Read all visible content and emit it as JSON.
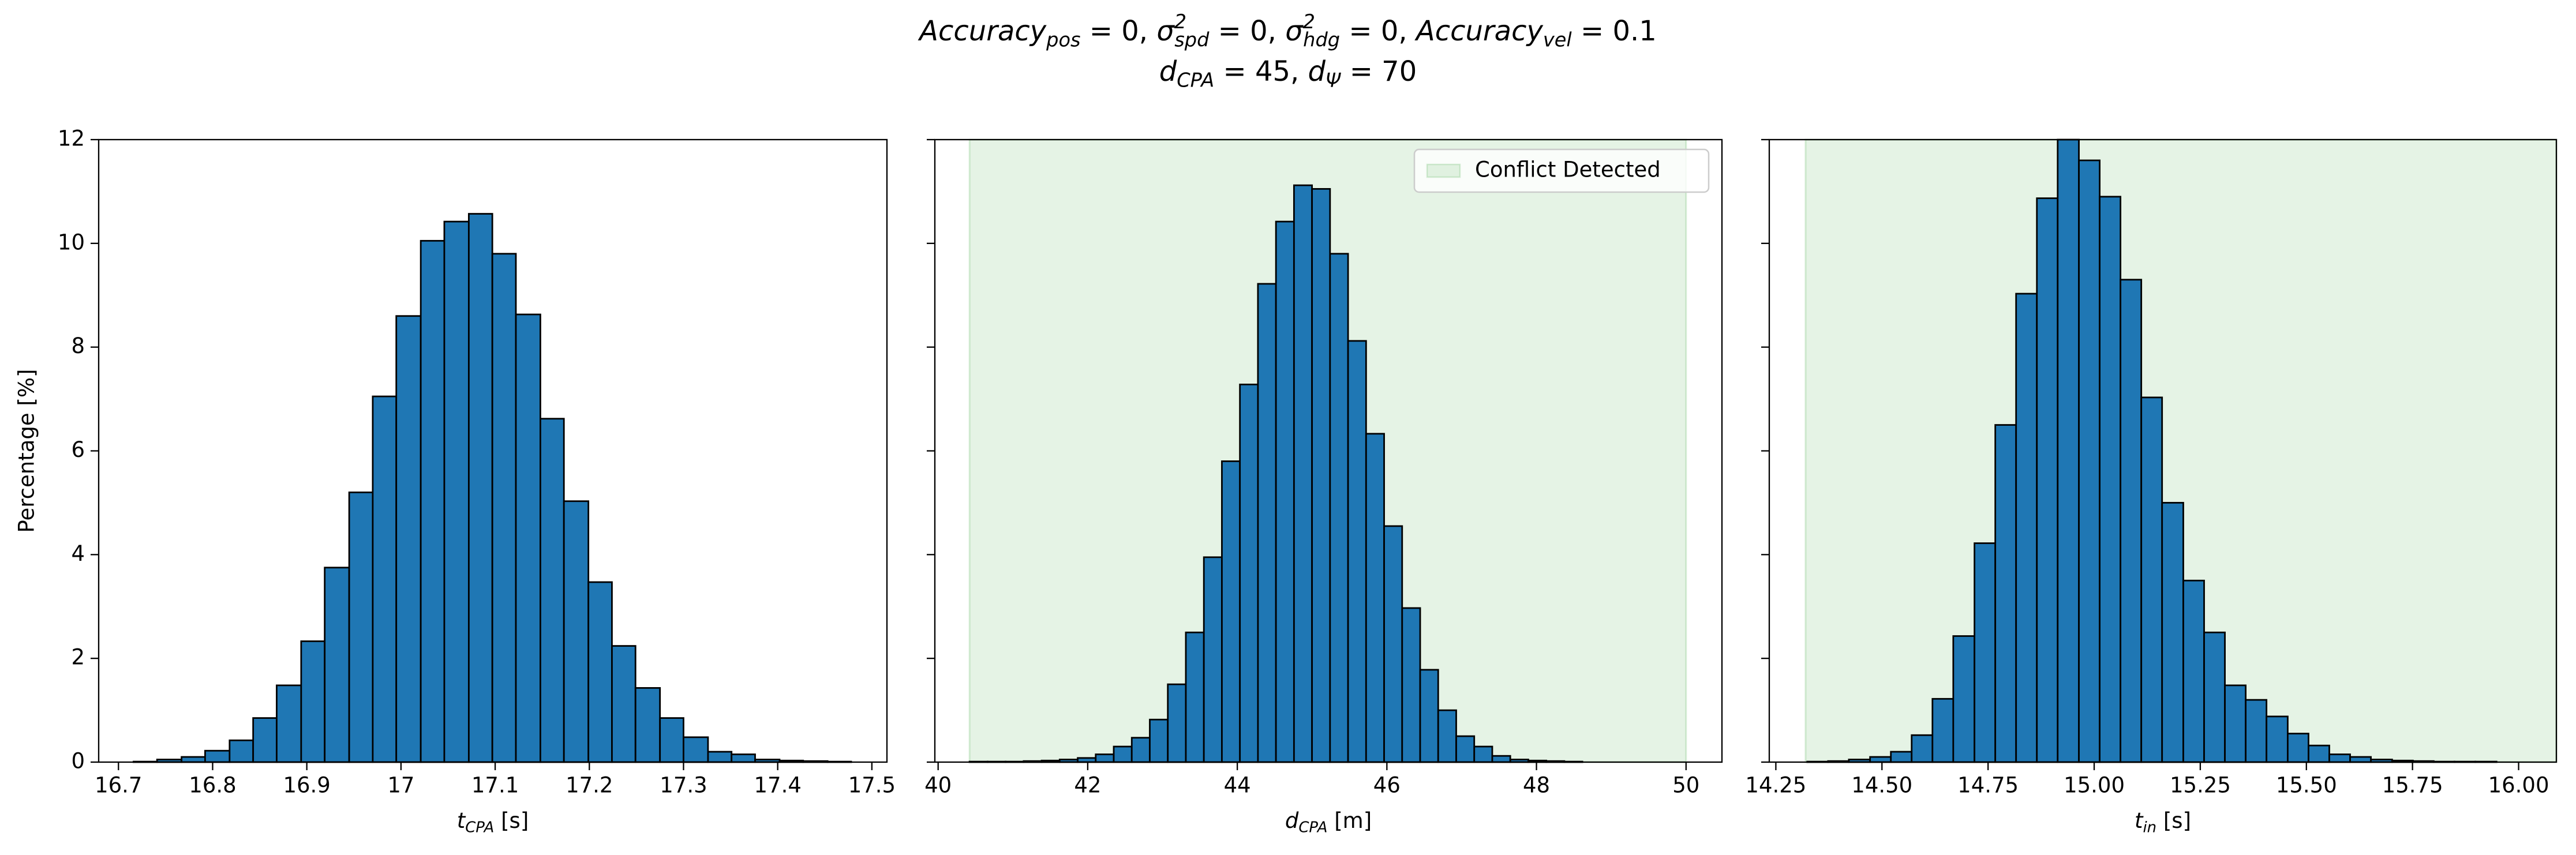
{
  "title": {
    "lines": [
      [
        {
          "t": "Accuracy",
          "sub": "pos"
        },
        " = 0, ",
        {
          "t": "σ",
          "sup": "2",
          "sub": "spd"
        },
        " = 0, ",
        {
          "t": "σ",
          "sup": "2",
          "sub": "hdg"
        },
        " = 0, ",
        {
          "t": "Accuracy",
          "sub": "vel"
        },
        " = 0.1"
      ],
      [
        {
          "t": "d",
          "sub": "CPA"
        },
        " = 45, ",
        {
          "t": "d",
          "sub": "Ψ"
        },
        " = 70"
      ]
    ]
  },
  "chart_data": [
    {
      "type": "histogram",
      "color": "#1f77b4",
      "edgecolor": "#000000",
      "bins": [
        16.716,
        16.741,
        16.767,
        16.792,
        16.818,
        16.843,
        16.868,
        16.894,
        16.919,
        16.945,
        16.97,
        16.995,
        17.021,
        17.046,
        17.072,
        17.097,
        17.122,
        17.148,
        17.173,
        17.199,
        17.224,
        17.249,
        17.275,
        17.3,
        17.326,
        17.351,
        17.376,
        17.402,
        17.427,
        17.453,
        17.478
      ],
      "values": [
        0.01,
        0.05,
        0.1,
        0.22,
        0.42,
        0.85,
        1.48,
        2.33,
        3.75,
        5.2,
        7.05,
        8.6,
        10.05,
        10.42,
        10.57,
        9.8,
        8.63,
        6.62,
        5.03,
        3.47,
        2.24,
        1.43,
        0.85,
        0.48,
        0.2,
        0.15,
        0.05,
        0.03,
        0.02,
        0.01
      ],
      "xlim": [
        16.679,
        17.516
      ],
      "xticks": [
        16.7,
        16.8,
        16.9,
        17,
        17.1,
        17.2,
        17.3,
        17.4,
        17.5
      ],
      "ylim": [
        0,
        12
      ],
      "yticks": [
        0,
        2,
        4,
        6,
        8,
        10,
        12
      ],
      "show_ytick_labels": true,
      "xlabel": [
        {
          "t": "t",
          "sub": "CPA"
        },
        " [s]"
      ],
      "ylabel": "Percentage [%]"
    },
    {
      "type": "histogram",
      "color": "#1f77b4",
      "edgecolor": "#000000",
      "bins": [
        40.42,
        40.661,
        40.902,
        41.143,
        41.384,
        41.625,
        41.866,
        42.107,
        42.348,
        42.589,
        42.83,
        43.071,
        43.312,
        43.553,
        43.794,
        44.035,
        44.276,
        44.517,
        44.758,
        44.999,
        45.24,
        45.481,
        45.722,
        45.963,
        46.204,
        46.445,
        46.686,
        46.927,
        47.168,
        47.409,
        47.65,
        47.891,
        48.132,
        48.373,
        48.614
      ],
      "values": [
        0.01,
        0.01,
        0.01,
        0.02,
        0.03,
        0.05,
        0.08,
        0.15,
        0.3,
        0.47,
        0.82,
        1.5,
        2.5,
        3.95,
        5.8,
        7.28,
        9.22,
        10.42,
        11.12,
        11.05,
        9.8,
        8.12,
        6.33,
        4.55,
        2.97,
        1.78,
        1.0,
        0.5,
        0.3,
        0.12,
        0.05,
        0.03,
        0.02,
        0.01
      ],
      "xlim": [
        39.956,
        50.48
      ],
      "xticks": [
        40,
        42,
        44,
        46,
        48,
        50
      ],
      "ylim": [
        0,
        12
      ],
      "yticks": [
        0,
        2,
        4,
        6,
        8,
        10,
        12
      ],
      "show_ytick_labels": false,
      "xlabel": [
        {
          "t": "d",
          "sub": "CPA"
        },
        " [m]"
      ],
      "span": {
        "range": [
          40.42,
          50
        ],
        "color": "#2ca02c",
        "alpha": 0.12,
        "label": "Conflict Detected"
      },
      "legend": "upper right"
    },
    {
      "type": "histogram",
      "color": "#1f77b4",
      "edgecolor": "#000000",
      "bins": [
        14.324,
        14.373,
        14.422,
        14.472,
        14.521,
        14.57,
        14.619,
        14.668,
        14.718,
        14.767,
        14.816,
        14.865,
        14.914,
        14.964,
        15.013,
        15.062,
        15.111,
        15.16,
        15.21,
        15.259,
        15.308,
        15.357,
        15.406,
        15.456,
        15.505,
        15.554,
        15.603,
        15.652,
        15.702,
        15.751,
        15.8,
        15.849,
        15.898,
        15.948
      ],
      "values": [
        0.01,
        0.02,
        0.05,
        0.1,
        0.2,
        0.52,
        1.22,
        2.43,
        4.22,
        6.5,
        9.03,
        10.87,
        12.0,
        11.6,
        10.9,
        9.3,
        7.03,
        5.0,
        3.5,
        2.5,
        1.48,
        1.2,
        0.88,
        0.55,
        0.32,
        0.15,
        0.1,
        0.05,
        0.03,
        0.02,
        0.01,
        0.01,
        0.01
      ],
      "xlim": [
        14.2345,
        16.089
      ],
      "xticks": [
        {
          "value": 14.25,
          "label": "14.25"
        },
        {
          "value": 14.5,
          "label": "14.50"
        },
        {
          "value": 14.75,
          "label": "14.75"
        },
        {
          "value": 15,
          "label": "15.00"
        },
        {
          "value": 15.25,
          "label": "15.25"
        },
        {
          "value": 15.5,
          "label": "15.50"
        },
        {
          "value": 15.75,
          "label": "15.75"
        },
        {
          "value": 16,
          "label": "16.00"
        }
      ],
      "ylim": [
        0,
        12
      ],
      "yticks": [
        0,
        2,
        4,
        6,
        8,
        10,
        12
      ],
      "show_ytick_labels": false,
      "xlabel": [
        {
          "t": "t",
          "sub": "in"
        },
        " [s]"
      ],
      "span": {
        "range": [
          14.32,
          16.089
        ],
        "color": "#2ca02c",
        "alpha": 0.12
      }
    }
  ]
}
